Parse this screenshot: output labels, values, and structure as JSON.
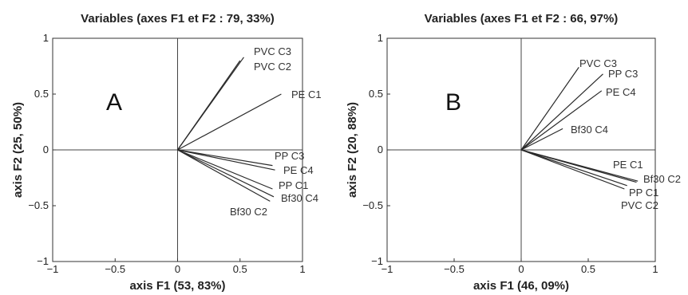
{
  "chart_data": [
    {
      "type": "vector",
      "panel": "A",
      "title": "Variables (axes F1 et F2 : 79, 33%)",
      "xlabel": "axis F1 (53, 83%)",
      "ylabel": "axis F2 (25, 50%)",
      "xlim": [
        -1,
        1
      ],
      "ylim": [
        -1,
        1
      ],
      "xticks": [
        "−1",
        "−0.5",
        "0",
        "0.5",
        "1"
      ],
      "yticks": [
        "−1",
        "−0.5",
        "0",
        "0.5",
        "1"
      ],
      "vectors": [
        {
          "label": "PVC C3",
          "x": 0.53,
          "y": 0.83
        },
        {
          "label": "PVC C2",
          "x": 0.5,
          "y": 0.8
        },
        {
          "label": "PE C1",
          "x": 0.83,
          "y": 0.5
        },
        {
          "label": "PP C3",
          "x": 0.76,
          "y": -0.14
        },
        {
          "label": "PE C4",
          "x": 0.78,
          "y": -0.18
        },
        {
          "label": "PP C1",
          "x": 0.76,
          "y": -0.35
        },
        {
          "label": "Bf30 C4",
          "x": 0.77,
          "y": -0.42
        },
        {
          "label": "Bf30 C2",
          "x": 0.74,
          "y": -0.46
        }
      ],
      "grid": false
    },
    {
      "type": "vector",
      "panel": "B",
      "title": "Variables (axes F1 et F2 : 66, 97%)",
      "xlabel": "axis F1 (46, 09%)",
      "ylabel": "axis F2 (20, 88%)",
      "xlim": [
        -1,
        1
      ],
      "ylim": [
        -1,
        1
      ],
      "xticks": [
        "−1",
        "−0.5",
        "0",
        "0.5",
        "1"
      ],
      "yticks": [
        "−1",
        "−0.5",
        "0",
        "0.5",
        "1"
      ],
      "vectors": [
        {
          "label": "PVC C3",
          "x": 0.43,
          "y": 0.74
        },
        {
          "label": "PP C3",
          "x": 0.61,
          "y": 0.68
        },
        {
          "label": "PE C4",
          "x": 0.6,
          "y": 0.53
        },
        {
          "label": "Bf30 C4",
          "x": 0.31,
          "y": 0.19
        },
        {
          "label": "PE C1",
          "x": 0.87,
          "y": -0.28
        },
        {
          "label": "Bf30 C2",
          "x": 0.86,
          "y": -0.29
        },
        {
          "label": "PP C1",
          "x": 0.79,
          "y": -0.32
        },
        {
          "label": "PVC C2",
          "x": 0.77,
          "y": -0.35
        }
      ],
      "grid": false
    }
  ]
}
